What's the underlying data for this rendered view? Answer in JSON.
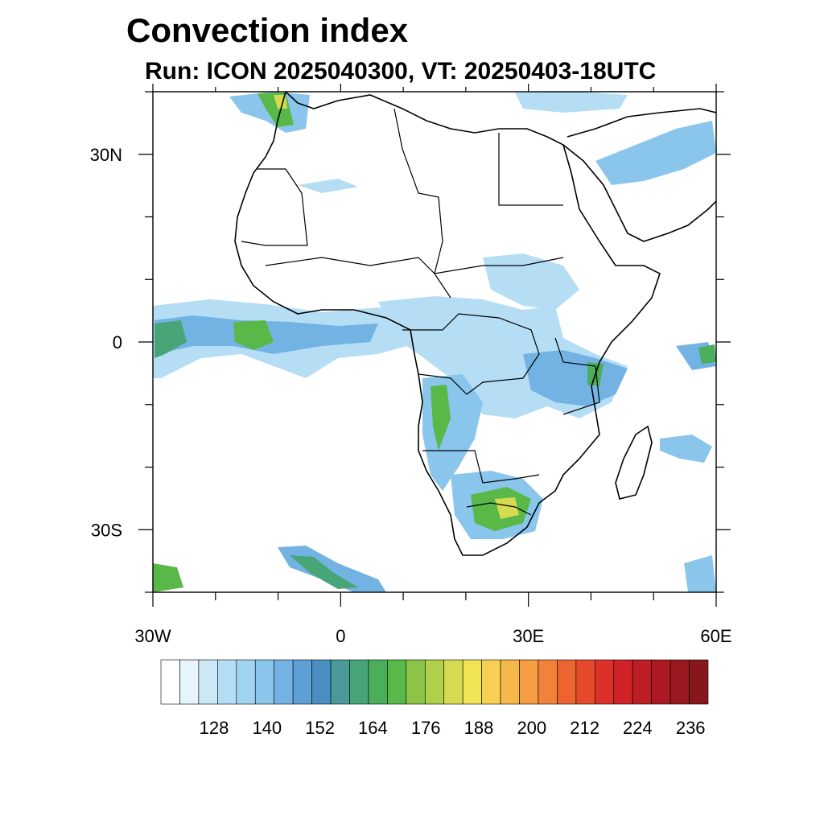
{
  "title": "Convection index",
  "subtitle": "Run: ICON 2025040300,  VT: 20250403-18UTC",
  "axes": {
    "lon_min": -30,
    "lon_max": 60,
    "lat_min": -40,
    "lat_max": 40,
    "x_ticks": [
      {
        "value": -30,
        "label": "30W"
      },
      {
        "value": 0,
        "label": "0"
      },
      {
        "value": 30,
        "label": "30E"
      },
      {
        "value": 60,
        "label": "60E"
      }
    ],
    "y_ticks": [
      {
        "value": 30,
        "label": "30N"
      },
      {
        "value": 0,
        "label": "0"
      },
      {
        "value": -30,
        "label": "30S"
      }
    ]
  },
  "colorbar": {
    "labels": [
      "128",
      "140",
      "152",
      "164",
      "176",
      "188",
      "200",
      "212",
      "224",
      "236"
    ],
    "colors": [
      "#ffffff",
      "#e6f4fb",
      "#cce8f7",
      "#b5def5",
      "#9fd4f2",
      "#8ac5ec",
      "#73b3e3",
      "#5d9fd6",
      "#4a8fc2",
      "#4a9a9a",
      "#48a578",
      "#4aae5a",
      "#58b848",
      "#8cc447",
      "#b0cf4a",
      "#d4db50",
      "#f0e455",
      "#f7cf52",
      "#f6b84b",
      "#f59d43",
      "#f2823a",
      "#ec6531",
      "#e54a2a",
      "#dc3128",
      "#cf2126",
      "#bf1d25",
      "#ab1a22",
      "#981920",
      "#86181d"
    ]
  },
  "overlays": {
    "land_color": "#ffffff",
    "border_color": "#000000"
  }
}
